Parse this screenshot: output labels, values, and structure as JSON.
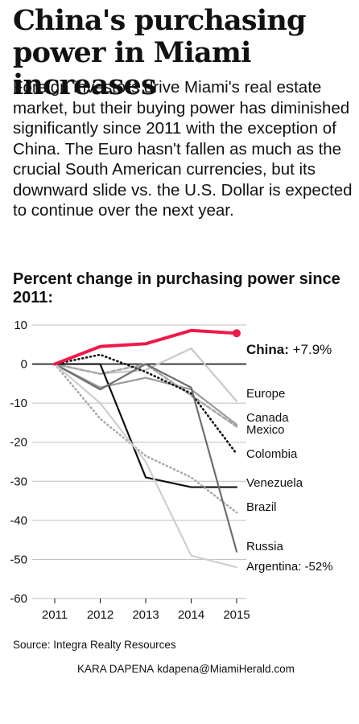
{
  "headline": "China's purchasing power in Miami increases",
  "intro": "Foreign investors drive Miami's real estate market, but their buying power has diminished significantly since 2011 with the exception of China. The Euro hasn't fallen as much as the crucial South American currencies, but its downward slide vs. the U.S. Dollar is expected to continue over the next year.",
  "source": "Source: Integra Realty Resources",
  "credit": {
    "name": "KARA DAPENA",
    "email": "kdapena@MiamiHerald.com"
  },
  "chart_data": {
    "type": "line",
    "title": "Percent change in purchasing power since 2011:",
    "x": [
      2011,
      2012,
      2013,
      2014,
      2015
    ],
    "ylim": [
      -60,
      10
    ],
    "yticks": [
      10,
      0,
      -10,
      -20,
      -30,
      -40,
      -50,
      -60
    ],
    "grid": true,
    "series": [
      {
        "name": "China:",
        "value_label": "+7.9%",
        "color": "#f0194a",
        "style": "solid",
        "marker_end": true,
        "values": [
          0,
          4.5,
          5.2,
          8.6,
          7.9
        ]
      },
      {
        "name": "Europe",
        "color": "#c8c8c8",
        "style": "solid",
        "values": [
          0,
          -2.5,
          -1.5,
          4.0,
          -9.5
        ]
      },
      {
        "name": "Canada",
        "color": "#9a9a9a",
        "style": "solid",
        "values": [
          0,
          -6.0,
          -3.5,
          -6.5,
          -15.5
        ]
      },
      {
        "name": "Mexico",
        "color": "#a8a8a8",
        "style": "dashed",
        "values": [
          0,
          -2.5,
          0.0,
          -8.0,
          -16.0
        ]
      },
      {
        "name": "Colombia",
        "color": "#111111",
        "style": "dotted",
        "values": [
          0,
          2.4,
          -2.0,
          -7.5,
          -23.0
        ]
      },
      {
        "name": "Venezuela",
        "color": "#111111",
        "style": "solid",
        "values": [
          0,
          0.0,
          -29.0,
          -31.5,
          -31.5
        ]
      },
      {
        "name": "Brazil",
        "color": "#aaaaaa",
        "style": "dotted",
        "values": [
          0,
          -14.0,
          -23.5,
          -29.0,
          -38.0
        ]
      },
      {
        "name": "Russia",
        "color": "#6e6e6e",
        "style": "solid",
        "values": [
          0,
          -6.5,
          0.0,
          -6.0,
          -48.0
        ]
      },
      {
        "name": "Argentina:",
        "value_label": "-52%",
        "color": "#cfcfcf",
        "style": "solid",
        "values": [
          0,
          -10.0,
          -25.0,
          -49.0,
          -52.0
        ]
      }
    ]
  }
}
